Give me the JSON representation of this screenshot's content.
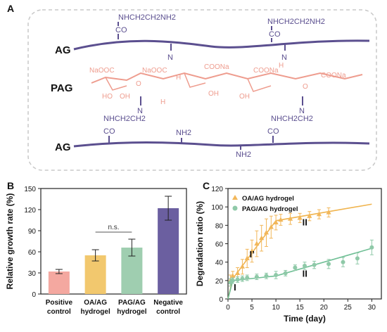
{
  "panels": {
    "a": "A",
    "b": "B",
    "c": "C"
  },
  "scheme": {
    "row_labels": {
      "ag_top": "AG",
      "pag": "PAG",
      "ag_bottom": "AG"
    },
    "top_groups": [
      "NHCH2CH2NH2",
      "CO",
      "NHCH2CH2NH2",
      "CO",
      "N"
    ],
    "pag_groups": [
      "NaOOC",
      "HO",
      "OH",
      "O",
      "NaOOC",
      "H",
      "COONa",
      "COONa",
      "OH",
      "OH",
      "COONa",
      "H",
      "H",
      "O"
    ],
    "bottom_groups": [
      "N",
      "NHCH2CH2",
      "CO",
      "NH2",
      "NH2",
      "N",
      "NHCH2CH2",
      "CO"
    ],
    "colors": {
      "polymer": "#5b4f8f",
      "pag": "#ee9c8e",
      "frame": "#c8c8c8"
    }
  },
  "chart_data": [
    {
      "type": "bar",
      "categories": [
        "Positive control",
        "OA/AG hydrogel",
        "PAG/AG hydrogel",
        "Negative control"
      ],
      "category_lines": [
        [
          "Positive",
          "control"
        ],
        [
          "OA/AG",
          "hydrogel"
        ],
        [
          "PAG/AG",
          "hydrogel"
        ],
        [
          "Negative",
          "control"
        ]
      ],
      "values": [
        32,
        55,
        66,
        122
      ],
      "errors": [
        3,
        8,
        12,
        17
      ],
      "colors": [
        "#f4a8a0",
        "#f2c86e",
        "#9fceb0",
        "#6b5fa0"
      ],
      "ylabel": "Relative growth rate (%)",
      "ylim": [
        0,
        150
      ],
      "yticks": [
        0,
        30,
        60,
        90,
        120,
        150
      ],
      "annotation": "n.s."
    },
    {
      "type": "scatter",
      "xlabel": "Time (day)",
      "ylabel": "Degradation ratio (%)",
      "xlim": [
        0,
        32
      ],
      "ylim": [
        0,
        120
      ],
      "xticks": [
        0,
        5,
        10,
        15,
        20,
        25,
        30
      ],
      "yticks": [
        0,
        20,
        40,
        60,
        80,
        100,
        120
      ],
      "legend_position": "top-left",
      "series": [
        {
          "name": "OA/AG hydrogel",
          "marker": "triangle",
          "color": "#f2b75a",
          "x": [
            0.5,
            1,
            2,
            3,
            4,
            5,
            6,
            7,
            8,
            9,
            10,
            11,
            13,
            15,
            17,
            19,
            21
          ],
          "y": [
            20,
            25,
            28,
            35,
            44,
            52,
            60,
            66,
            72,
            78,
            83,
            86,
            87,
            88,
            90,
            92,
            94
          ],
          "err": [
            6,
            5,
            6,
            8,
            10,
            12,
            14,
            14,
            15,
            12,
            8,
            6,
            6,
            5,
            5,
            5,
            5
          ]
        },
        {
          "name": "PAG/AG hydrogel",
          "marker": "circle",
          "color": "#8fc9a8",
          "x": [
            0.5,
            1,
            2,
            3,
            4,
            6,
            8,
            10,
            12,
            14,
            16,
            18,
            21,
            24,
            27,
            30
          ],
          "y": [
            18,
            20,
            21,
            22,
            23,
            24,
            25,
            26,
            28,
            34,
            36,
            37,
            38,
            40,
            44,
            56
          ],
          "err": [
            4,
            3,
            3,
            3,
            3,
            3,
            3,
            4,
            3,
            3,
            4,
            4,
            5,
            5,
            6,
            8
          ]
        }
      ],
      "fit_lines": [
        {
          "color": "#f0b44e",
          "x": [
            0,
            1,
            10,
            30
          ],
          "y": [
            0,
            22,
            85,
            103
          ]
        },
        {
          "color": "#6fbf95",
          "x": [
            0,
            1,
            10,
            30
          ],
          "y": [
            0,
            20,
            25,
            55
          ]
        }
      ],
      "region_labels": [
        {
          "text": "I",
          "x": 1.2,
          "y": 9
        },
        {
          "text": "I’",
          "x": 4.5,
          "y": 45
        },
        {
          "text": "II",
          "x": 15.5,
          "y": 80
        },
        {
          "text": "II",
          "x": 15.5,
          "y": 24
        }
      ]
    }
  ]
}
